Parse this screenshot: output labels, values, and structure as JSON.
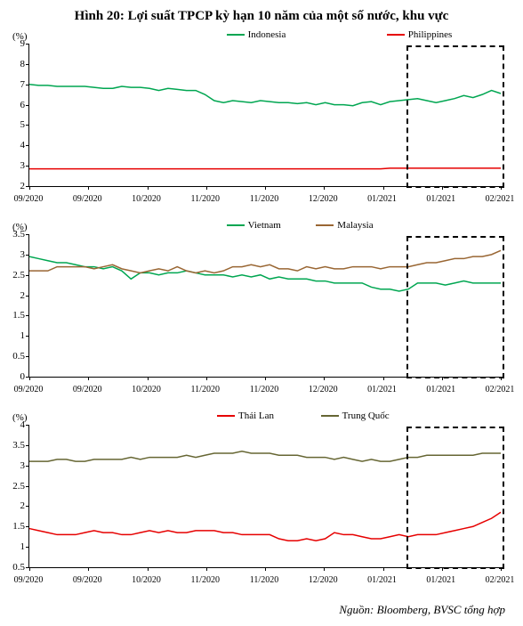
{
  "title": "Hình 20: Lợi suất TPCP kỳ hạn 10 năm của một số nước, khu vực",
  "source": "Nguồn: Bloomberg, BVSC tổng hợp",
  "x_labels": [
    "09/2020",
    "09/2020",
    "10/2020",
    "11/2020",
    "11/2020",
    "12/2020",
    "01/2021",
    "01/2021",
    "02/2021"
  ],
  "highlight": {
    "x_start": 0.8,
    "x_end": 1.0
  },
  "panels": [
    {
      "y_label": "(%)",
      "ymin": 2,
      "ymax": 9,
      "ytick_step": 1,
      "series": [
        {
          "name": "Indonesia",
          "color": "#00a651",
          "width": 1.5,
          "legend_x": 0.42,
          "data": [
            7.0,
            6.95,
            6.95,
            6.9,
            6.9,
            6.9,
            6.9,
            6.85,
            6.8,
            6.8,
            6.9,
            6.85,
            6.85,
            6.8,
            6.7,
            6.8,
            6.75,
            6.7,
            6.7,
            6.5,
            6.2,
            6.1,
            6.2,
            6.15,
            6.1,
            6.2,
            6.15,
            6.1,
            6.1,
            6.05,
            6.1,
            6.0,
            6.1,
            6.0,
            6.0,
            5.95,
            6.1,
            6.15,
            6.0,
            6.15,
            6.2,
            6.25,
            6.3,
            6.2,
            6.1,
            6.2,
            6.3,
            6.45,
            6.35,
            6.5,
            6.7,
            6.55
          ]
        },
        {
          "name": "Philippines",
          "color": "#e60000",
          "width": 1.5,
          "legend_x": 0.76,
          "data": [
            2.85,
            2.85,
            2.85,
            2.85,
            2.85,
            2.85,
            2.85,
            2.85,
            2.85,
            2.85,
            2.85,
            2.85,
            2.85,
            2.85,
            2.85,
            2.85,
            2.85,
            2.85,
            2.85,
            2.85,
            2.85,
            2.85,
            2.85,
            2.85,
            2.85,
            2.85,
            2.85,
            2.85,
            2.85,
            2.85,
            2.85,
            2.85,
            2.85,
            2.85,
            2.85,
            2.85,
            2.85,
            2.85,
            2.85,
            2.88,
            2.88,
            2.88,
            2.88,
            2.88,
            2.88,
            2.88,
            2.88,
            2.88,
            2.88,
            2.88,
            2.88,
            2.88
          ]
        }
      ]
    },
    {
      "y_label": "(%)",
      "ymin": 0,
      "ymax": 3.5,
      "ytick_step": 0.5,
      "series": [
        {
          "name": "Vietnam",
          "color": "#00a651",
          "width": 1.5,
          "legend_x": 0.42,
          "data": [
            2.95,
            2.9,
            2.85,
            2.8,
            2.8,
            2.75,
            2.7,
            2.7,
            2.65,
            2.7,
            2.6,
            2.4,
            2.55,
            2.55,
            2.5,
            2.55,
            2.55,
            2.6,
            2.55,
            2.5,
            2.5,
            2.5,
            2.45,
            2.5,
            2.45,
            2.5,
            2.4,
            2.45,
            2.4,
            2.4,
            2.4,
            2.35,
            2.35,
            2.3,
            2.3,
            2.3,
            2.3,
            2.2,
            2.15,
            2.15,
            2.1,
            2.15,
            2.3,
            2.3,
            2.3,
            2.25,
            2.3,
            2.35,
            2.3,
            2.3,
            2.3,
            2.3
          ]
        },
        {
          "name": "Malaysia",
          "color": "#996633",
          "width": 1.5,
          "legend_x": 0.61,
          "data": [
            2.6,
            2.6,
            2.6,
            2.7,
            2.7,
            2.7,
            2.7,
            2.65,
            2.7,
            2.75,
            2.65,
            2.6,
            2.55,
            2.6,
            2.65,
            2.6,
            2.7,
            2.6,
            2.55,
            2.6,
            2.55,
            2.6,
            2.7,
            2.7,
            2.75,
            2.7,
            2.75,
            2.65,
            2.65,
            2.6,
            2.7,
            2.65,
            2.7,
            2.65,
            2.65,
            2.7,
            2.7,
            2.7,
            2.65,
            2.7,
            2.7,
            2.7,
            2.75,
            2.8,
            2.8,
            2.85,
            2.9,
            2.9,
            2.95,
            2.95,
            3.0,
            3.1
          ]
        }
      ]
    },
    {
      "y_label": "(%)",
      "ymin": 0.5,
      "ymax": 4,
      "ytick_step": 0.5,
      "series": [
        {
          "name": "Thái Lan",
          "color": "#e60000",
          "width": 1.5,
          "legend_x": 0.4,
          "data": [
            1.45,
            1.4,
            1.35,
            1.3,
            1.3,
            1.3,
            1.35,
            1.4,
            1.35,
            1.35,
            1.3,
            1.3,
            1.35,
            1.4,
            1.35,
            1.4,
            1.35,
            1.35,
            1.4,
            1.4,
            1.4,
            1.35,
            1.35,
            1.3,
            1.3,
            1.3,
            1.3,
            1.2,
            1.15,
            1.15,
            1.2,
            1.15,
            1.2,
            1.35,
            1.3,
            1.3,
            1.25,
            1.2,
            1.2,
            1.25,
            1.3,
            1.25,
            1.3,
            1.3,
            1.3,
            1.35,
            1.4,
            1.45,
            1.5,
            1.6,
            1.7,
            1.85
          ]
        },
        {
          "name": "Trung Quốc",
          "color": "#666633",
          "width": 1.5,
          "legend_x": 0.62,
          "data": [
            3.1,
            3.1,
            3.1,
            3.15,
            3.15,
            3.1,
            3.1,
            3.15,
            3.15,
            3.15,
            3.15,
            3.2,
            3.15,
            3.2,
            3.2,
            3.2,
            3.2,
            3.25,
            3.2,
            3.25,
            3.3,
            3.3,
            3.3,
            3.35,
            3.3,
            3.3,
            3.3,
            3.25,
            3.25,
            3.25,
            3.2,
            3.2,
            3.2,
            3.15,
            3.2,
            3.15,
            3.1,
            3.15,
            3.1,
            3.1,
            3.15,
            3.2,
            3.2,
            3.25,
            3.25,
            3.25,
            3.25,
            3.25,
            3.25,
            3.3,
            3.3,
            3.3
          ]
        }
      ]
    }
  ]
}
